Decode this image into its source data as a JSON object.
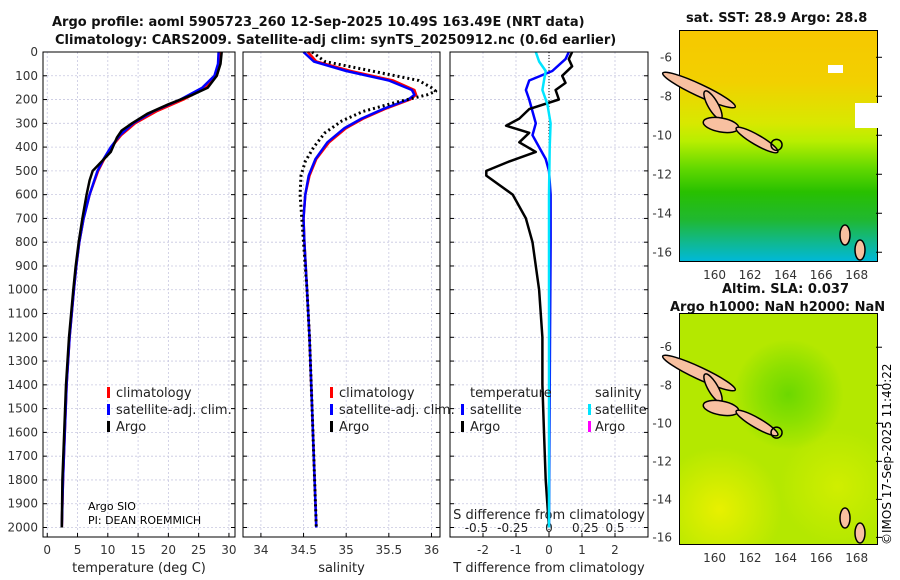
{
  "title_line1": "Argo profile: aoml 5905723_260 12-Sep-2025 10.49S 163.49E (NRT data)",
  "title_line2": "Climatology: CARS2009. Satellite-adj clim: synTS_20250912.nc (0.6d earlier)",
  "credit": "©IMOS 17-Sep-2025 11:40:22",
  "annotation": {
    "line1": "Argo SIO",
    "line2": "PI: DEAN ROEMMICH"
  },
  "colors": {
    "climatology": "#ff0000",
    "satellite": "#0000ff",
    "argo": "#000000",
    "sal_satellite": "#00e5ff",
    "sal_argo": "#ff00ff"
  },
  "chart_data": [
    {
      "type": "line",
      "xlabel": "temperature (deg C)",
      "ylabel": "depth",
      "xlim": [
        -0.7,
        31
      ],
      "ylim": [
        0,
        2040
      ],
      "xticks": [
        0,
        5,
        10,
        15,
        20,
        25,
        30
      ],
      "yticks": [
        0,
        100,
        200,
        300,
        400,
        500,
        600,
        700,
        800,
        900,
        1000,
        1100,
        1200,
        1300,
        1400,
        1500,
        1600,
        1700,
        1800,
        1900,
        2000
      ],
      "legend": [
        "climatology",
        "satellite-adj. clim.",
        "Argo"
      ],
      "series": [
        {
          "name": "climatology",
          "color": "#ff0000",
          "depth": [
            0,
            50,
            100,
            150,
            200,
            250,
            300,
            350,
            400,
            450,
            500,
            600,
            700,
            800,
            900,
            1000,
            1200,
            1400,
            1600,
            1800,
            2000
          ],
          "values": [
            28.6,
            28.5,
            28,
            26.2,
            22.5,
            18,
            14.5,
            12.2,
            10.6,
            9.4,
            8.4,
            7,
            6,
            5.3,
            4.8,
            4.4,
            3.7,
            3.2,
            2.9,
            2.6,
            2.4
          ]
        },
        {
          "name": "satellite-adj. clim.",
          "color": "#0000ff",
          "depth": [
            0,
            50,
            100,
            150,
            200,
            250,
            300,
            350,
            400,
            450,
            500,
            600,
            700,
            800,
            900,
            1000,
            1200,
            1400,
            1600,
            1800,
            2000
          ],
          "values": [
            28.3,
            28.2,
            27.6,
            25.6,
            22,
            17.5,
            14.2,
            12,
            10.5,
            9.3,
            8.3,
            7,
            6,
            5.3,
            4.8,
            4.4,
            3.7,
            3.2,
            2.9,
            2.6,
            2.4
          ]
        },
        {
          "name": "Argo",
          "color": "#000000",
          "depth": [
            0,
            50,
            100,
            150,
            180,
            220,
            260,
            300,
            330,
            360,
            420,
            460,
            500,
            540,
            600,
            700,
            800,
            900,
            1000,
            1200,
            1400,
            1600,
            1800,
            2000
          ],
          "values": [
            28.8,
            28.6,
            28,
            26.5,
            24,
            20,
            16.5,
            14,
            12.3,
            11.5,
            10.5,
            9,
            7.5,
            7,
            6.5,
            5.8,
            5.2,
            4.7,
            4.3,
            3.6,
            3.1,
            2.8,
            2.5,
            2.4
          ]
        }
      ]
    },
    {
      "type": "line",
      "xlabel": "salinity",
      "xlim": [
        33.79,
        36.1
      ],
      "ylim": [
        0,
        2040
      ],
      "xticks": [
        34,
        34.5,
        35,
        35.5,
        36
      ],
      "legend": [
        "climatology",
        "satellite-adj. clim.",
        "Argo"
      ],
      "series": [
        {
          "name": "climatology",
          "color": "#ff0000",
          "depth": [
            0,
            40,
            80,
            120,
            160,
            180,
            200,
            240,
            280,
            320,
            380,
            450,
            520,
            600,
            700,
            800,
            1000,
            1200,
            1500,
            1800,
            2000
          ],
          "values": [
            34.55,
            34.65,
            35.05,
            35.55,
            35.8,
            35.82,
            35.75,
            35.45,
            35.2,
            35.0,
            34.8,
            34.65,
            34.57,
            34.52,
            34.5,
            34.51,
            34.54,
            34.57,
            34.6,
            34.63,
            34.65
          ]
        },
        {
          "name": "satellite-adj. clim.",
          "color": "#0000ff",
          "depth": [
            0,
            40,
            80,
            120,
            160,
            180,
            200,
            240,
            280,
            320,
            380,
            450,
            520,
            600,
            700,
            800,
            1000,
            1200,
            1500,
            1800,
            2000
          ],
          "values": [
            34.5,
            34.62,
            35.0,
            35.5,
            35.77,
            35.8,
            35.73,
            35.43,
            35.18,
            34.98,
            34.78,
            34.64,
            34.56,
            34.52,
            34.5,
            34.51,
            34.54,
            34.57,
            34.6,
            34.63,
            34.65
          ]
        },
        {
          "name": "Argo",
          "color": "#000000",
          "depth": [
            0,
            40,
            80,
            120,
            150,
            165,
            180,
            210,
            250,
            290,
            340,
            400,
            460,
            520,
            600,
            700,
            800,
            1000,
            1200,
            1500,
            1800,
            2000
          ],
          "values": [
            34.6,
            34.75,
            35.3,
            35.85,
            36.0,
            36.05,
            35.95,
            35.6,
            35.2,
            34.95,
            34.75,
            34.62,
            34.52,
            34.47,
            34.46,
            34.48,
            34.5,
            34.54,
            34.57,
            34.6,
            34.63,
            34.65
          ]
        }
      ]
    },
    {
      "type": "line",
      "xlabel": "T difference from climatology",
      "x2label": "S difference from climatology",
      "xlim": [
        -3,
        3
      ],
      "ylim": [
        0,
        2040
      ],
      "xticks": [
        -2,
        -1,
        0,
        1,
        2
      ],
      "x2ticks": [
        "-0.5",
        "-0.25",
        "0",
        "0.25",
        "0.5"
      ],
      "legend_temperature_title": "temperature",
      "legend_salinity_title": "salinity",
      "legend_temperature": [
        "satellite",
        "Argo"
      ],
      "legend_salinity": [
        "satellite",
        "Argo"
      ],
      "series": [
        {
          "name": "temperature satellite",
          "color": "#0000ff",
          "depth": [
            0,
            30,
            80,
            120,
            160,
            200,
            250,
            300,
            350,
            400,
            450,
            500,
            600,
            800,
            1200,
            2000
          ],
          "values": [
            0.6,
            0.5,
            0.1,
            -0.6,
            -0.7,
            -0.6,
            -0.5,
            -0.4,
            -0.5,
            -0.3,
            -0.1,
            0,
            0.05,
            0.05,
            0.03,
            0
          ]
        },
        {
          "name": "temperature Argo",
          "color": "#000000",
          "depth": [
            0,
            30,
            60,
            100,
            130,
            160,
            200,
            240,
            280,
            310,
            340,
            380,
            420,
            460,
            500,
            520,
            560,
            600,
            650,
            700,
            750,
            800,
            900,
            1000,
            1200,
            1400,
            1600,
            1800,
            2000
          ],
          "values": [
            0.7,
            0.6,
            0.7,
            0.4,
            0.5,
            0.2,
            0.3,
            -0.6,
            -0.9,
            -1.3,
            -0.6,
            -0.9,
            -0.4,
            -1.2,
            -1.9,
            -1.9,
            -1.5,
            -1.1,
            -0.9,
            -0.7,
            -0.6,
            -0.5,
            -0.4,
            -0.3,
            -0.2,
            -0.2,
            -0.15,
            -0.1,
            0
          ]
        },
        {
          "name": "salinity satellite",
          "color": "#00e5ff",
          "depth": [
            0,
            40,
            80,
            120,
            160,
            220,
            300,
            400,
            600,
            1000,
            2000
          ],
          "values": [
            -0.4,
            -0.3,
            -0.1,
            -0.15,
            -0.2,
            -0.05,
            0.05,
            0.02,
            0,
            0,
            0
          ]
        }
      ]
    }
  ],
  "maps": [
    {
      "title": "sat. SST: 28.9 Argo: 28.8",
      "lat_ticks": [
        "-6",
        "-8",
        "-10",
        "-12",
        "-14",
        "-16"
      ],
      "lon_ticks": [
        "160",
        "162",
        "164",
        "166",
        "168"
      ]
    },
    {
      "title_line1": "Altim. SLA: 0.037",
      "title_line2": "Argo h1000: NaN h2000: NaN",
      "lat_ticks": [
        "-6",
        "-8",
        "-10",
        "-12",
        "-14",
        "-16"
      ],
      "lon_ticks": [
        "160",
        "162",
        "164",
        "166",
        "168"
      ]
    }
  ]
}
